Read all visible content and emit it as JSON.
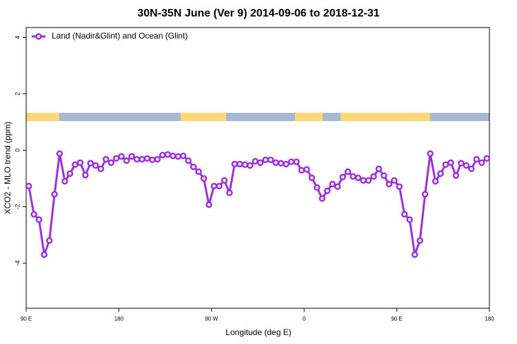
{
  "chart_data": {
    "type": "line",
    "title": "30N-35N June (Ver 9)   2014-09-06 to 2018-12-31",
    "xlabel": "Longitude (deg E)",
    "ylabel": "XCO2 - MLO trend (ppm)",
    "x": [
      92.5,
      97.5,
      102.5,
      107.5,
      112.5,
      117.5,
      122.5,
      127.5,
      132.5,
      137.5,
      142.5,
      147.5,
      152.5,
      157.5,
      162.5,
      167.5,
      172.5,
      177.5,
      182.5,
      187.5,
      192.5,
      197.5,
      202.5,
      207.5,
      212.5,
      217.5,
      222.5,
      227.5,
      232.5,
      237.5,
      242.5,
      247.5,
      252.5,
      257.5,
      262.5,
      267.5,
      272.5,
      277.5,
      282.5,
      287.5,
      292.5,
      297.5,
      302.5,
      307.5,
      312.5,
      317.5,
      322.5,
      327.5,
      332.5,
      337.5,
      342.5,
      347.5,
      352.5,
      357.5,
      362.5,
      367.5,
      372.5,
      377.5,
      382.5,
      387.5,
      392.5,
      397.5,
      402.5,
      407.5,
      412.5,
      417.5,
      422.5,
      427.5,
      432.5,
      437.5,
      442.5,
      447.5,
      452.5,
      457.5,
      462.5,
      467.5,
      472.5,
      477.5,
      482.5,
      487.5,
      492.5,
      497.5,
      502.5,
      507.5,
      512.5,
      517.5,
      522.5,
      527.5,
      532.5,
      537.5
    ],
    "series": [
      {
        "name": "Land (Nadir&Glint) and Ocean (Glint)",
        "color": "#9b30e0",
        "values": [
          -1.27,
          -2.27,
          -2.46,
          -3.7,
          -3.2,
          -1.56,
          -0.12,
          -1.1,
          -0.83,
          -0.51,
          -0.44,
          -0.88,
          -0.46,
          -0.54,
          -0.66,
          -0.32,
          -0.44,
          -0.29,
          -0.22,
          -0.37,
          -0.22,
          -0.32,
          -0.32,
          -0.29,
          -0.34,
          -0.32,
          -0.17,
          -0.15,
          -0.2,
          -0.22,
          -0.2,
          -0.37,
          -0.59,
          -0.76,
          -1.0,
          -1.93,
          -1.27,
          -1.27,
          -1.07,
          -1.51,
          -0.49,
          -0.49,
          -0.51,
          -0.54,
          -0.39,
          -0.44,
          -0.34,
          -0.34,
          -0.44,
          -0.46,
          -0.49,
          -0.41,
          -0.41,
          -0.71,
          -0.68,
          -0.98,
          -1.32,
          -1.71,
          -1.44,
          -1.2,
          -1.29,
          -0.95,
          -0.76,
          -0.93,
          -0.98,
          -1.07,
          -1.07,
          -0.93,
          -0.66,
          -0.9,
          -1.2,
          -1.07,
          -1.29,
          -2.27,
          -2.46,
          -3.7,
          -3.2,
          -1.56,
          -0.12,
          -1.1,
          -0.83,
          -0.51,
          -0.44,
          -0.9,
          -0.46,
          -0.54,
          -0.66,
          -0.32,
          -0.44,
          -0.29
        ]
      }
    ],
    "xlim": [
      90,
      540
    ],
    "xticks": [
      {
        "value": 90,
        "label": "90 E"
      },
      {
        "value": 180,
        "label": "180"
      },
      {
        "value": 270,
        "label": "90 W"
      },
      {
        "value": 360,
        "label": "0"
      },
      {
        "value": 450,
        "label": "90 E"
      },
      {
        "value": 540,
        "label": "180"
      }
    ],
    "ylim": [
      -5.6,
      4.35
    ],
    "yticks": [
      -4,
      -2,
      0,
      2,
      4
    ],
    "legend": "top-left"
  }
}
